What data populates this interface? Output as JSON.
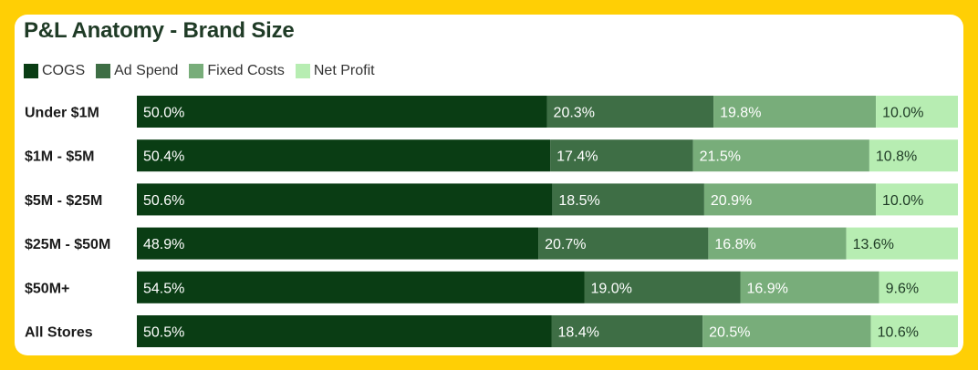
{
  "chart_data": {
    "type": "bar",
    "orientation": "horizontal",
    "stacked": true,
    "title": "P&L Anatomy - Brand Size",
    "legend_position": "top-left",
    "categories": [
      "Under $1M",
      "$1M - $5M",
      "$5M - $25M",
      "$25M - $50M",
      "$50M+",
      "All Stores"
    ],
    "series": [
      {
        "name": "COGS",
        "color": "#0A3D14",
        "text_color": "#FFFFFF",
        "values": [
          50.0,
          50.4,
          50.6,
          48.9,
          54.5,
          50.5
        ],
        "labels": [
          "50.0%",
          "50.4%",
          "50.6%",
          "48.9%",
          "54.5%",
          "50.5%"
        ]
      },
      {
        "name": "Ad Spend",
        "color": "#3E6E45",
        "text_color": "#FFFFFF",
        "values": [
          20.3,
          17.4,
          18.5,
          20.7,
          19.0,
          18.4
        ],
        "labels": [
          "20.3%",
          "17.4%",
          "18.5%",
          "20.7%",
          "19.0%",
          "18.4%"
        ]
      },
      {
        "name": "Fixed Costs",
        "color": "#78AD7A",
        "text_color": "#FFFFFF",
        "values": [
          19.8,
          21.5,
          20.9,
          16.8,
          16.9,
          20.5
        ],
        "labels": [
          "19.8%",
          "21.5%",
          "20.9%",
          "16.8%",
          "16.9%",
          "20.5%"
        ]
      },
      {
        "name": "Net Profit",
        "color": "#B7EDB2",
        "text_color": "#1F3B26",
        "values": [
          10.0,
          10.8,
          10.0,
          13.6,
          9.6,
          10.6
        ],
        "labels": [
          "10.0%",
          "10.8%",
          "10.0%",
          "13.6%",
          "9.6%",
          "10.6%"
        ]
      }
    ]
  }
}
